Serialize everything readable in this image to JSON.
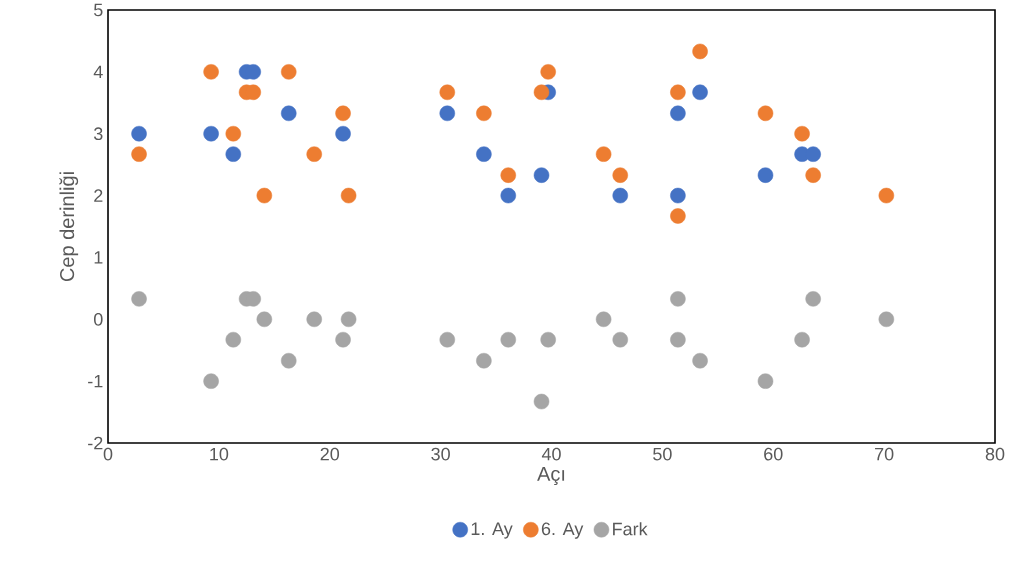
{
  "chart_data": {
    "type": "scatter",
    "xlabel": "Açı",
    "ylabel": "Cep derinliği",
    "x": [
      2.8,
      9.3,
      11.3,
      12.5,
      13.1,
      14.1,
      16.3,
      18.6,
      21.2,
      21.7,
      30.6,
      33.9,
      36.1,
      39.1,
      39.7,
      44.7,
      46.2,
      51.4,
      51.4,
      53.4,
      59.3,
      62.6,
      63.6,
      70.2
    ],
    "series": [
      {
        "name": "1. Ay",
        "color": "#4472c4",
        "values": [
          3,
          3,
          2.67,
          4,
          4,
          null,
          3.33,
          null,
          3,
          null,
          3.33,
          2.67,
          2,
          2.33,
          3.67,
          null,
          2,
          3.33,
          2,
          3.67,
          2.33,
          2.67,
          2.67,
          null
        ]
      },
      {
        "name": "6. Ay",
        "color": "#ed7d31",
        "values": [
          2.67,
          4,
          3,
          3.67,
          3.67,
          2,
          4,
          2.67,
          3.33,
          2,
          3.67,
          3.33,
          2.33,
          3.67,
          4,
          2.67,
          2.33,
          3.67,
          1.67,
          4.33,
          3.33,
          3,
          2.33,
          2
        ]
      },
      {
        "name": "Fark",
        "color": "#a5a5a5",
        "values": [
          0.33,
          -1,
          -0.33,
          0.33,
          0.33,
          0,
          -0.67,
          0,
          -0.33,
          0,
          -0.33,
          -0.67,
          -0.33,
          -1.33,
          -0.33,
          0,
          -0.33,
          -0.33,
          0.33,
          -0.67,
          -1,
          -0.33,
          0.33,
          0
        ]
      }
    ],
    "xlim": [
      0,
      80
    ],
    "ylim": [
      -2,
      5
    ],
    "xticks": [
      0,
      10,
      20,
      30,
      40,
      50,
      60,
      70,
      80
    ],
    "yticks": [
      -2,
      -1,
      0,
      1,
      2,
      3,
      4,
      5
    ],
    "marker": "circle",
    "grid": false,
    "legend": "bottom"
  }
}
